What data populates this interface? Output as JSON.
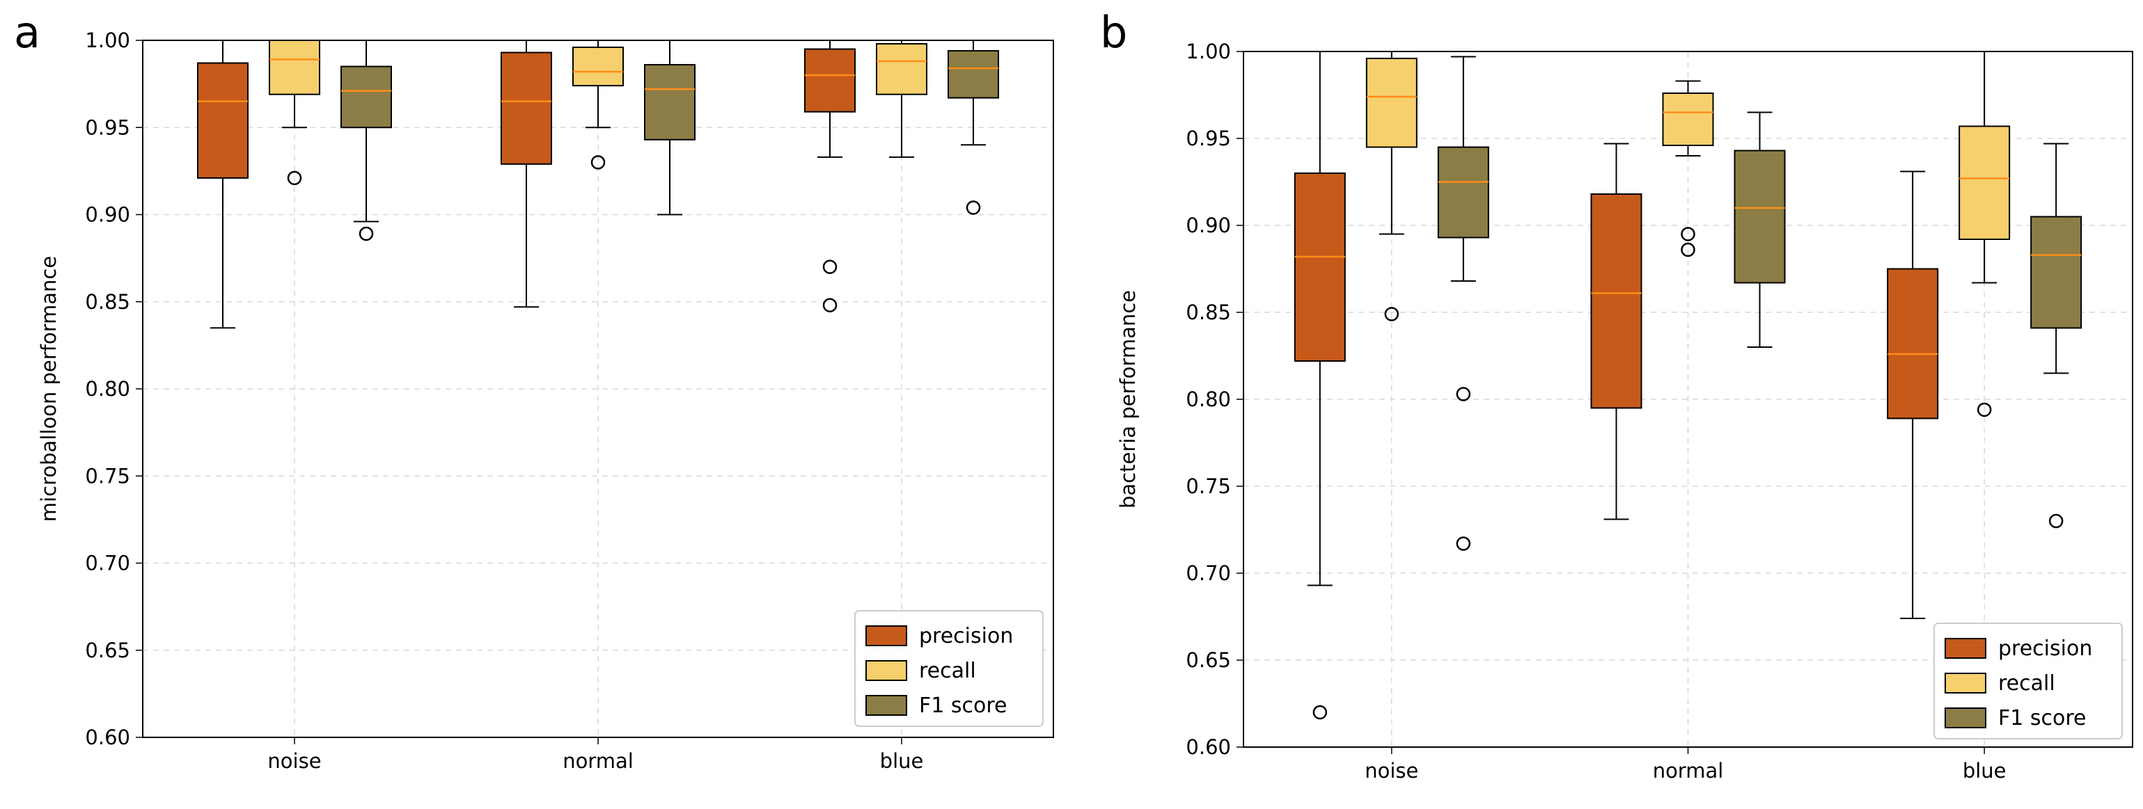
{
  "chart_data": [
    {
      "type": "boxplot",
      "panel_label": "a",
      "ylabel": "microballoon performance",
      "xlabel": "",
      "ylim": [
        0.6,
        1.0
      ],
      "yticks": [
        "0.60",
        "0.65",
        "0.70",
        "0.75",
        "0.80",
        "0.85",
        "0.90",
        "0.95",
        "1.00"
      ],
      "categories": [
        "noise",
        "normal",
        "blue"
      ],
      "grid": true,
      "legend_position": "bottom-right",
      "series": [
        {
          "name": "precision",
          "color": "#c55a1a",
          "boxes": [
            {
              "whislo": 0.835,
              "q1": 0.921,
              "med": 0.965,
              "q3": 0.987,
              "whishi": 1.0,
              "fliers": []
            },
            {
              "whislo": 0.847,
              "q1": 0.929,
              "med": 0.965,
              "q3": 0.993,
              "whishi": 1.0,
              "fliers": []
            },
            {
              "whislo": 0.933,
              "q1": 0.959,
              "med": 0.98,
              "q3": 0.995,
              "whishi": 1.0,
              "fliers": [
                0.87,
                0.848
              ]
            }
          ]
        },
        {
          "name": "recall",
          "color": "#f6d06d",
          "boxes": [
            {
              "whislo": 0.95,
              "q1": 0.969,
              "med": 0.989,
              "q3": 1.0,
              "whishi": 1.0,
              "fliers": [
                0.921
              ]
            },
            {
              "whislo": 0.95,
              "q1": 0.974,
              "med": 0.982,
              "q3": 0.996,
              "whishi": 1.0,
              "fliers": [
                0.93
              ]
            },
            {
              "whislo": 0.933,
              "q1": 0.969,
              "med": 0.988,
              "q3": 0.998,
              "whishi": 1.0,
              "fliers": []
            }
          ]
        },
        {
          "name": "F1 score",
          "color": "#8b7d45",
          "boxes": [
            {
              "whislo": 0.896,
              "q1": 0.95,
              "med": 0.971,
              "q3": 0.985,
              "whishi": 1.0,
              "fliers": [
                0.889
              ]
            },
            {
              "whislo": 0.9,
              "q1": 0.943,
              "med": 0.972,
              "q3": 0.986,
              "whishi": 1.0,
              "fliers": []
            },
            {
              "whislo": 0.94,
              "q1": 0.967,
              "med": 0.984,
              "q3": 0.994,
              "whishi": 1.0,
              "fliers": [
                0.904
              ]
            }
          ]
        }
      ]
    },
    {
      "type": "boxplot",
      "panel_label": "b",
      "ylabel": "bacteria performance",
      "xlabel": "",
      "ylim": [
        0.6,
        1.0
      ],
      "yticks": [
        "0.60",
        "0.65",
        "0.70",
        "0.75",
        "0.80",
        "0.85",
        "0.90",
        "0.95",
        "1.00"
      ],
      "categories": [
        "noise",
        "normal",
        "blue"
      ],
      "grid": true,
      "legend_position": "bottom-right",
      "series": [
        {
          "name": "precision",
          "color": "#c55a1a",
          "boxes": [
            {
              "whislo": 0.693,
              "q1": 0.822,
              "med": 0.882,
              "q3": 0.93,
              "whishi": 1.0,
              "fliers": [
                0.62
              ]
            },
            {
              "whislo": 0.731,
              "q1": 0.795,
              "med": 0.861,
              "q3": 0.918,
              "whishi": 0.947,
              "fliers": []
            },
            {
              "whislo": 0.674,
              "q1": 0.789,
              "med": 0.826,
              "q3": 0.875,
              "whishi": 0.931,
              "fliers": []
            }
          ]
        },
        {
          "name": "recall",
          "color": "#f6d06d",
          "boxes": [
            {
              "whislo": 0.895,
              "q1": 0.945,
              "med": 0.974,
              "q3": 0.996,
              "whishi": 1.0,
              "fliers": [
                0.849
              ]
            },
            {
              "whislo": 0.94,
              "q1": 0.946,
              "med": 0.965,
              "q3": 0.976,
              "whishi": 0.983,
              "fliers": [
                0.895,
                0.886
              ]
            },
            {
              "whislo": 0.867,
              "q1": 0.892,
              "med": 0.927,
              "q3": 0.957,
              "whishi": 1.0,
              "fliers": [
                0.794
              ]
            }
          ]
        },
        {
          "name": "F1 score",
          "color": "#8b7d45",
          "boxes": [
            {
              "whislo": 0.868,
              "q1": 0.893,
              "med": 0.925,
              "q3": 0.945,
              "whishi": 0.997,
              "fliers": [
                0.803,
                0.717
              ]
            },
            {
              "whislo": 0.83,
              "q1": 0.867,
              "med": 0.91,
              "q3": 0.943,
              "whishi": 0.965,
              "fliers": []
            },
            {
              "whislo": 0.815,
              "q1": 0.841,
              "med": 0.883,
              "q3": 0.905,
              "whishi": 0.947,
              "fliers": [
                0.73
              ]
            }
          ]
        }
      ]
    }
  ]
}
